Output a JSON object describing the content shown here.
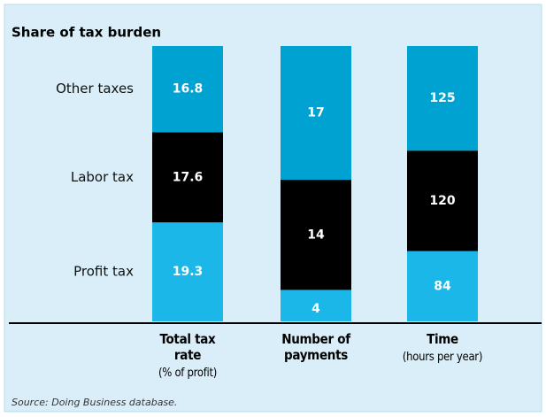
{
  "chart_data": {
    "type": "stacked_share_bar",
    "title": "Share of tax burden",
    "categories": [
      {
        "name": "Total tax rate",
        "note": "(% of profit)"
      },
      {
        "name": "Number of payments"
      },
      {
        "name": "Time",
        "note": "(hours per year)"
      }
    ],
    "series": [
      {
        "name": "Profit tax",
        "color": "#1bb7e9",
        "values": [
          19.3,
          4,
          84
        ]
      },
      {
        "name": "Labor tax",
        "color": "#000000",
        "values": [
          17.6,
          14,
          120
        ]
      },
      {
        "name": "Other taxes",
        "color": "#00a2d2",
        "values": [
          16.8,
          17,
          125
        ]
      }
    ],
    "source": "Source: Doing Business database."
  }
}
